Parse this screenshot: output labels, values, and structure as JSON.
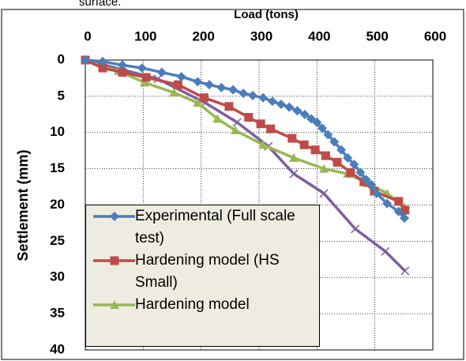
{
  "caption": "surface.",
  "chart_data": {
    "type": "line",
    "x_label": "Load (tons)",
    "y_label": "Settlement (mm)",
    "xlim": [
      0,
      600
    ],
    "xticks": [
      0,
      100,
      200,
      300,
      400,
      500,
      600
    ],
    "ylim": [
      0,
      40
    ],
    "yticks": [
      0,
      5,
      10,
      15,
      20,
      25,
      30,
      35,
      40
    ],
    "y_inverted": true,
    "x_axis_top": true,
    "grid": true,
    "legend": "lower left",
    "series": [
      {
        "name": "Experimental (Full scale test)",
        "color": "#4a7ebb",
        "marker": "diamond",
        "x": [
          0,
          30,
          64,
          98,
          132,
          166,
          194,
          214,
          235,
          255,
          273,
          289,
          307,
          323,
          338,
          352,
          366,
          379,
          390,
          400,
          409,
          419,
          430,
          442,
          453,
          464,
          475,
          485,
          494,
          503,
          521,
          541,
          551
        ],
        "values": [
          0,
          0.2,
          0.7,
          1.1,
          1.7,
          2.3,
          3.0,
          3.4,
          3.8,
          4.1,
          4.6,
          4.9,
          5.2,
          5.7,
          6.1,
          6.5,
          7.0,
          7.5,
          8.1,
          8.6,
          9.4,
          10.3,
          11.3,
          12.4,
          13.5,
          14.4,
          15.5,
          16.5,
          17.2,
          18.4,
          19.8,
          20.9,
          21.8
        ]
      },
      {
        "name": "Hardening model (HS Small)",
        "color": "#be4b48",
        "marker": "square",
        "x": [
          0,
          30,
          64,
          105,
          160,
          205,
          248,
          282,
          303,
          320,
          357,
          378,
          397,
          415,
          435,
          458,
          481,
          499,
          541,
          552
        ],
        "values": [
          0,
          1.1,
          1.7,
          2.4,
          3.4,
          5.2,
          6.4,
          7.9,
          8.8,
          9.5,
          10.8,
          11.7,
          12.4,
          13.2,
          14.1,
          15.5,
          16.8,
          18.1,
          19.5,
          20.7
        ]
      },
      {
        "name": "Hardening model",
        "color": "#98b954",
        "marker": "triangle",
        "x": [
          0,
          30,
          57,
          102,
          153,
          194,
          228,
          259,
          307,
          360,
          412,
          453,
          487,
          521,
          551
        ],
        "values": [
          0,
          0.9,
          1.5,
          3.1,
          4.5,
          5.9,
          8.1,
          9.7,
          11.7,
          13.5,
          15.0,
          15.7,
          17.0,
          18.4,
          20.3
        ]
      },
      {
        "color": "#7d5fa0",
        "marker": "x",
        "x": [
          0,
          125,
          207,
          262,
          316,
          360,
          412,
          466,
          518,
          552
        ],
        "values": [
          0,
          2.6,
          5.9,
          8.6,
          11.9,
          15.7,
          18.4,
          23.3,
          26.4,
          29.1
        ]
      }
    ]
  }
}
